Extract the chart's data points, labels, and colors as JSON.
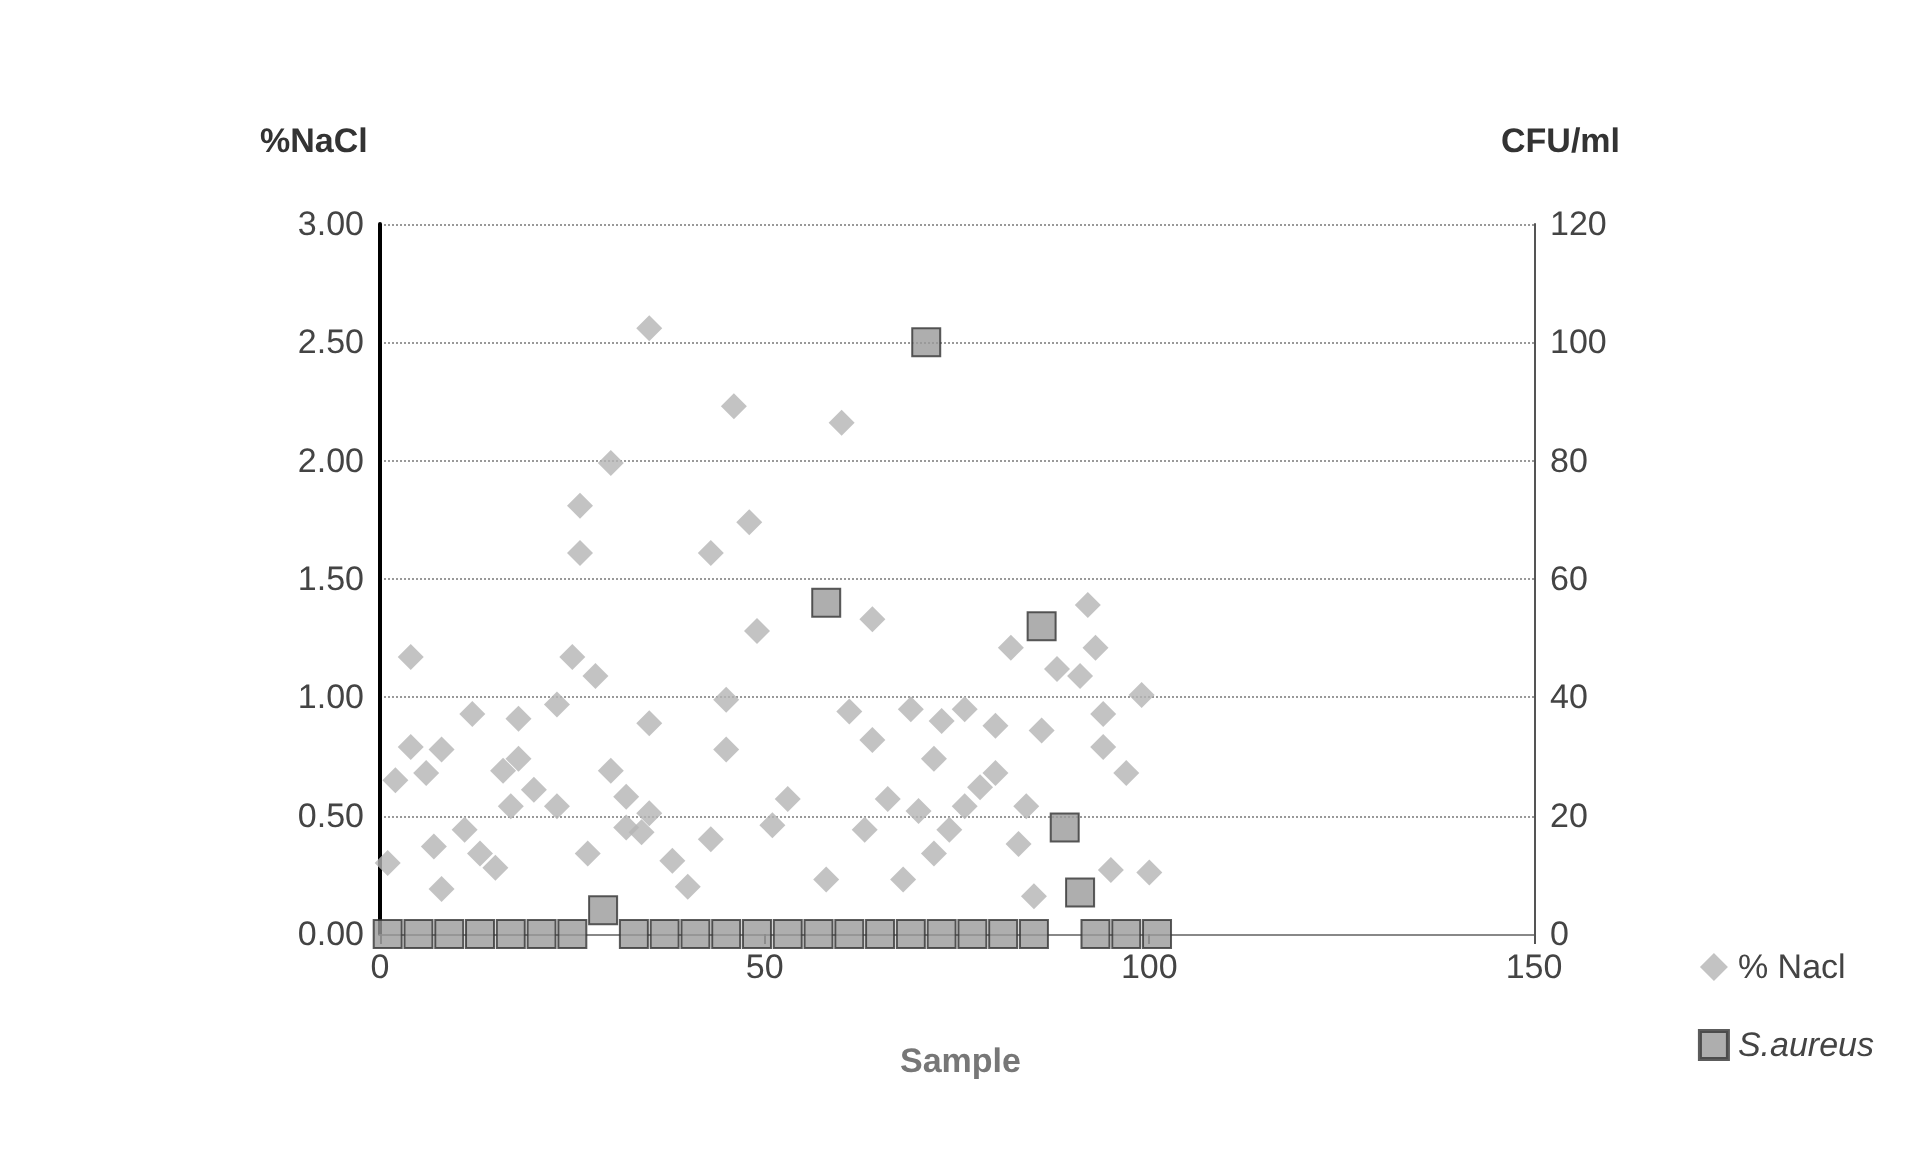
{
  "chart_data": {
    "type": "scatter",
    "xlabel": "Sample",
    "ylabel": "%NaCl",
    "y2label": "CFU/ml",
    "xlim": [
      0,
      150
    ],
    "xticks": [
      0,
      50,
      100,
      150
    ],
    "ylim": [
      0,
      3
    ],
    "yticks": [
      {
        "value": 0,
        "label": "0.00"
      },
      {
        "value": 0.5,
        "label": "0.50"
      },
      {
        "value": 1,
        "label": "1.00"
      },
      {
        "value": 1.5,
        "label": "1.50"
      },
      {
        "value": 2,
        "label": "2.00"
      },
      {
        "value": 2.5,
        "label": "2.50"
      },
      {
        "value": 3,
        "label": "3.00"
      }
    ],
    "y2lim": [
      0,
      120
    ],
    "y2ticks": [
      0,
      20,
      40,
      60,
      80,
      100,
      120
    ],
    "grid": "y",
    "legend": "right",
    "series": [
      {
        "name": "% Nacl",
        "color": "#b4b4b4",
        "marker": "diamond",
        "x": [
          35,
          46,
          60,
          30,
          26,
          48,
          26,
          43,
          92,
          49,
          64,
          4,
          25,
          28,
          82,
          93,
          88,
          91,
          45,
          23,
          99,
          12,
          18,
          61,
          69,
          76,
          73,
          80,
          94,
          35,
          86,
          4,
          8,
          2,
          6,
          18,
          20,
          11,
          1,
          7,
          13,
          15,
          8,
          16,
          17,
          27,
          34,
          30,
          32,
          32,
          38,
          45,
          40,
          35,
          43,
          53,
          51,
          23,
          64,
          72,
          97,
          94,
          66,
          70,
          78,
          80,
          84,
          63,
          76,
          74,
          72,
          83,
          58,
          68,
          85,
          95,
          100
        ],
        "values": [
          2.56,
          2.23,
          2.16,
          1.99,
          1.81,
          1.74,
          1.61,
          1.61,
          1.39,
          1.28,
          1.33,
          1.17,
          1.17,
          1.09,
          1.21,
          1.21,
          1.12,
          1.09,
          0.99,
          0.97,
          1.01,
          0.93,
          0.91,
          0.94,
          0.95,
          0.95,
          0.9,
          0.88,
          0.93,
          0.89,
          0.86,
          0.79,
          0.78,
          0.65,
          0.68,
          0.74,
          0.61,
          0.44,
          0.3,
          0.37,
          0.34,
          0.28,
          0.19,
          0.69,
          0.54,
          0.34,
          0.43,
          0.69,
          0.58,
          0.45,
          0.31,
          0.78,
          0.2,
          0.51,
          0.4,
          0.57,
          0.46,
          0.54,
          0.82,
          0.74,
          0.68,
          0.79,
          0.57,
          0.52,
          0.62,
          0.68,
          0.54,
          0.44,
          0.54,
          0.44,
          0.34,
          0.38,
          0.23,
          0.23,
          0.16,
          0.27,
          0.26
        ]
      },
      {
        "name": "S.aureus",
        "color": "#9a9a9a",
        "marker": "square",
        "axis": "y2",
        "x": [
          1,
          5,
          9,
          13,
          17,
          21,
          25,
          29,
          33,
          37,
          41,
          45,
          49,
          53,
          57,
          58,
          61,
          65,
          69,
          71,
          73,
          77,
          81,
          85,
          86,
          89,
          91,
          93,
          97,
          101
        ],
        "values": [
          0,
          0,
          0,
          0,
          0,
          0,
          0,
          4,
          0,
          0,
          0,
          0,
          0,
          0,
          0,
          56,
          0,
          0,
          0,
          100,
          0,
          0,
          0,
          0,
          52,
          18,
          7,
          0,
          0,
          0
        ]
      }
    ]
  }
}
